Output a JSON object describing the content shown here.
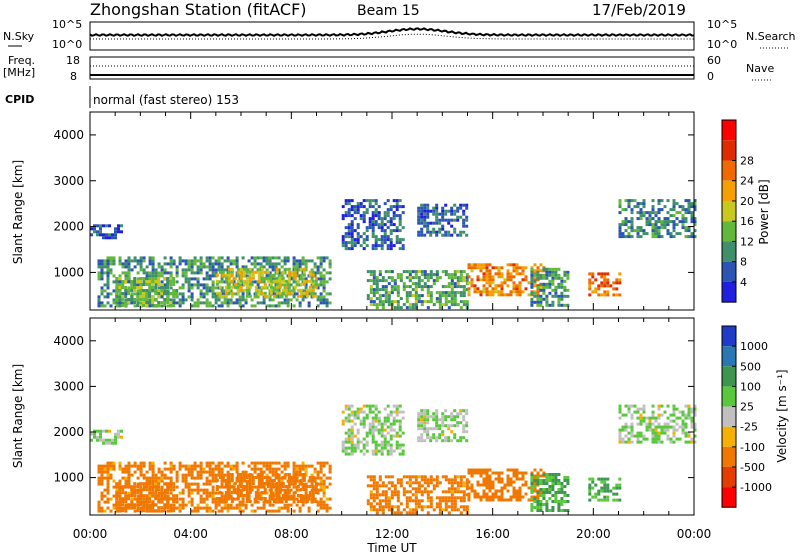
{
  "header": {
    "station": "Zhongshan Station (fitACF)",
    "beam": "Beam 15",
    "date": "17/Feb/2019"
  },
  "nsky_panel": {
    "left_label": "N.Sky",
    "top_tick": "10^5",
    "bottom_tick": "10^0",
    "right_top_tick": "10^5",
    "right_bottom_tick": "10^0",
    "right_label": "N.Search"
  },
  "freq_panel": {
    "left_label_1": "Freq.",
    "left_label_2": "[MHz]",
    "left_top_tick": "18",
    "left_bottom_tick": "8",
    "right_top_tick": "60",
    "right_bottom_tick": "0",
    "right_label": "Nave"
  },
  "cpid": {
    "label": "CPID",
    "value": "normal (fast stereo) 153"
  },
  "time_axis": {
    "ticks": [
      "00:00",
      "04:00",
      "08:00",
      "12:00",
      "16:00",
      "20:00",
      "00:00"
    ],
    "label": "Time UT"
  },
  "power_panel": {
    "ylabel": "Slant Range [km]",
    "yticks": [
      "1000",
      "2000",
      "3000",
      "4000"
    ],
    "colorbar_label": "Power [dB]",
    "colorbar_ticks": [
      "4",
      "8",
      "12",
      "16",
      "20",
      "24",
      "28"
    ],
    "colors": [
      "#1f1fe0",
      "#2a55b4",
      "#3f8f6a",
      "#62b83a",
      "#c8c81e",
      "#f5a000",
      "#f06a00",
      "#e02b00",
      "#ff0000"
    ]
  },
  "velocity_panel": {
    "ylabel": "Slant Range [km]",
    "yticks": [
      "1000",
      "2000",
      "3000",
      "4000"
    ],
    "colorbar_label": "Velocity  [m s⁻¹]",
    "colorbar_ticks": [
      "1000",
      "500",
      "100",
      "25",
      "-25",
      "-100",
      "-500",
      "-1000"
    ],
    "colors": [
      "#1e3cc8",
      "#2878b4",
      "#3c9650",
      "#5ac83c",
      "#c0c0c0",
      "#f5b000",
      "#f07800",
      "#e63c00",
      "#ff0000"
    ]
  },
  "chart_data": {
    "type": "heatmap",
    "x_range_hours": [
      0,
      24
    ],
    "y_range_km": [
      180,
      4500
    ],
    "regions": [
      {
        "t0": 0.0,
        "t1": 1.2,
        "r0": 1750,
        "r1": 2050,
        "power": 5,
        "velocity": 25
      },
      {
        "t0": 0.3,
        "t1": 9.5,
        "r0": 250,
        "r1": 1350,
        "power": 10,
        "velocity": -150
      },
      {
        "t0": 1.0,
        "t1": 3.5,
        "r0": 250,
        "r1": 900,
        "power": 14,
        "velocity": -250
      },
      {
        "t0": 5.0,
        "t1": 9.0,
        "r0": 450,
        "r1": 1100,
        "power": 18,
        "velocity": -200
      },
      {
        "t0": 10.0,
        "t1": 12.5,
        "r0": 1500,
        "r1": 2600,
        "power": 6,
        "velocity": 25
      },
      {
        "t0": 11.0,
        "t1": 15.0,
        "r0": 250,
        "r1": 1050,
        "power": 12,
        "velocity": -150
      },
      {
        "t0": 13.0,
        "t1": 15.0,
        "r0": 1800,
        "r1": 2500,
        "power": 7,
        "velocity": 25
      },
      {
        "t0": 15.0,
        "t1": 18.0,
        "r0": 500,
        "r1": 1200,
        "power": 24,
        "velocity": -200
      },
      {
        "t0": 17.5,
        "t1": 19.0,
        "r0": 250,
        "r1": 1100,
        "power": 10,
        "velocity": 100
      },
      {
        "t0": 19.8,
        "t1": 21.0,
        "r0": 500,
        "r1": 1000,
        "power": 26,
        "velocity": 100
      },
      {
        "t0": 21.0,
        "t1": 24.0,
        "r0": 1750,
        "r1": 2600,
        "power": 9,
        "velocity": 25
      }
    ]
  }
}
